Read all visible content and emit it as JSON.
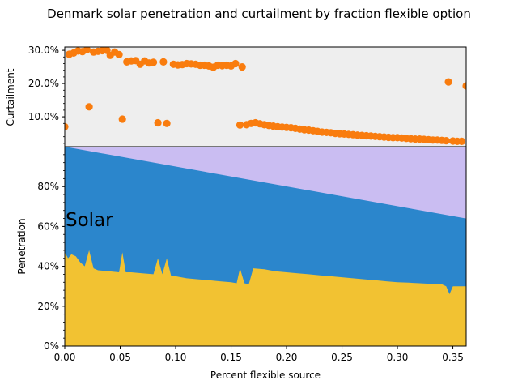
{
  "colors": {
    "scatter": "#f97c0e",
    "top_bg": "#eeeeee",
    "bottom_layer": "#f2c232",
    "middle_layer": "#2b86cc",
    "top_layer": "#cabdf2"
  },
  "chart_data": [
    {
      "type": "scatter",
      "title": "Denmark solar penetration and curtailment by fraction flexible option",
      "xlabel": "",
      "ylabel": "Curtailment",
      "xlim": [
        0,
        0.362
      ],
      "ylim": [
        0.01,
        0.31
      ],
      "yticks": [
        0.1,
        0.2,
        0.3
      ],
      "ytick_labels": [
        "10.0%",
        "20.0%",
        "30.0%"
      ],
      "grid": false,
      "series": [
        {
          "x": [
            0.0,
            0.004,
            0.008,
            0.012,
            0.016,
            0.02,
            0.022,
            0.026,
            0.03,
            0.034,
            0.038,
            0.041,
            0.045,
            0.049,
            0.052,
            0.056,
            0.06,
            0.064,
            0.068,
            0.072,
            0.076,
            0.08,
            0.084,
            0.089,
            0.092,
            0.098,
            0.102,
            0.106,
            0.11,
            0.114,
            0.118,
            0.122,
            0.126,
            0.13,
            0.134,
            0.138,
            0.142,
            0.146,
            0.15,
            0.154,
            0.158,
            0.16,
            0.164,
            0.168,
            0.172,
            0.176,
            0.18,
            0.184,
            0.188,
            0.192,
            0.196,
            0.2,
            0.204,
            0.208,
            0.212,
            0.216,
            0.22,
            0.224,
            0.228,
            0.232,
            0.236,
            0.24,
            0.244,
            0.248,
            0.252,
            0.256,
            0.26,
            0.264,
            0.268,
            0.272,
            0.276,
            0.28,
            0.284,
            0.288,
            0.292,
            0.296,
            0.3,
            0.304,
            0.308,
            0.312,
            0.316,
            0.32,
            0.324,
            0.328,
            0.332,
            0.336,
            0.34,
            0.344,
            0.346,
            0.35,
            0.354,
            0.358,
            0.362
          ],
          "y": [
            0.07,
            0.288,
            0.292,
            0.298,
            0.296,
            0.302,
            0.13,
            0.295,
            0.297,
            0.299,
            0.3,
            0.285,
            0.295,
            0.287,
            0.093,
            0.265,
            0.268,
            0.269,
            0.258,
            0.268,
            0.262,
            0.264,
            0.082,
            0.265,
            0.08,
            0.258,
            0.256,
            0.257,
            0.26,
            0.259,
            0.258,
            0.255,
            0.255,
            0.253,
            0.249,
            0.255,
            0.254,
            0.255,
            0.253,
            0.26,
            0.075,
            0.25,
            0.076,
            0.08,
            0.082,
            0.079,
            0.076,
            0.074,
            0.072,
            0.07,
            0.069,
            0.068,
            0.067,
            0.065,
            0.063,
            0.061,
            0.06,
            0.058,
            0.056,
            0.054,
            0.053,
            0.052,
            0.05,
            0.049,
            0.048,
            0.047,
            0.046,
            0.045,
            0.044,
            0.043,
            0.042,
            0.041,
            0.04,
            0.039,
            0.038,
            0.037,
            0.037,
            0.036,
            0.035,
            0.034,
            0.033,
            0.033,
            0.032,
            0.031,
            0.03,
            0.03,
            0.029,
            0.028,
            0.205,
            0.027,
            0.026,
            0.026,
            0.193
          ]
        }
      ]
    },
    {
      "type": "area",
      "stacked": true,
      "xlabel": "Percent flexible source",
      "ylabel": "Penetration",
      "xlim": [
        0,
        0.362
      ],
      "ylim": [
        0,
        1.0
      ],
      "xticks": [
        0.0,
        0.05,
        0.1,
        0.15,
        0.2,
        0.25,
        0.3,
        0.35
      ],
      "xtick_labels": [
        "0.00",
        "0.05",
        "0.10",
        "0.15",
        "0.20",
        "0.25",
        "0.30",
        "0.35"
      ],
      "yticks": [
        0,
        0.2,
        0.4,
        0.6,
        0.8
      ],
      "ytick_labels": [
        "0%",
        "20%",
        "40%",
        "60%",
        "80%"
      ],
      "annotations": [
        {
          "text": "Solar",
          "x": 0.002,
          "y": 0.63
        }
      ],
      "grid": false,
      "series": [
        {
          "x": [
            0.0,
            0.003,
            0.006,
            0.01,
            0.014,
            0.018,
            0.022,
            0.026,
            0.03,
            0.04,
            0.049,
            0.052,
            0.055,
            0.06,
            0.07,
            0.08,
            0.084,
            0.088,
            0.092,
            0.096,
            0.1,
            0.11,
            0.12,
            0.13,
            0.14,
            0.15,
            0.155,
            0.158,
            0.162,
            0.166,
            0.17,
            0.18,
            0.19,
            0.2,
            0.21,
            0.22,
            0.23,
            0.24,
            0.25,
            0.26,
            0.27,
            0.28,
            0.29,
            0.3,
            0.31,
            0.32,
            0.33,
            0.34,
            0.344,
            0.347,
            0.35,
            0.355,
            0.362
          ],
          "y": [
            0.47,
            0.44,
            0.46,
            0.45,
            0.42,
            0.4,
            0.48,
            0.39,
            0.38,
            0.375,
            0.37,
            0.47,
            0.37,
            0.37,
            0.365,
            0.36,
            0.44,
            0.36,
            0.44,
            0.35,
            0.35,
            0.34,
            0.335,
            0.33,
            0.325,
            0.32,
            0.315,
            0.39,
            0.315,
            0.31,
            0.39,
            0.385,
            0.375,
            0.37,
            0.365,
            0.36,
            0.355,
            0.35,
            0.345,
            0.34,
            0.335,
            0.33,
            0.325,
            0.32,
            0.318,
            0.315,
            0.312,
            0.31,
            0.3,
            0.26,
            0.3,
            0.3,
            0.3
          ]
        },
        {
          "x": [
            0.0,
            0.362
          ],
          "y": [
            1.0,
            0.64
          ]
        },
        {
          "x": [
            0.0,
            0.362
          ],
          "y": [
            1.0,
            1.0
          ]
        }
      ]
    }
  ]
}
